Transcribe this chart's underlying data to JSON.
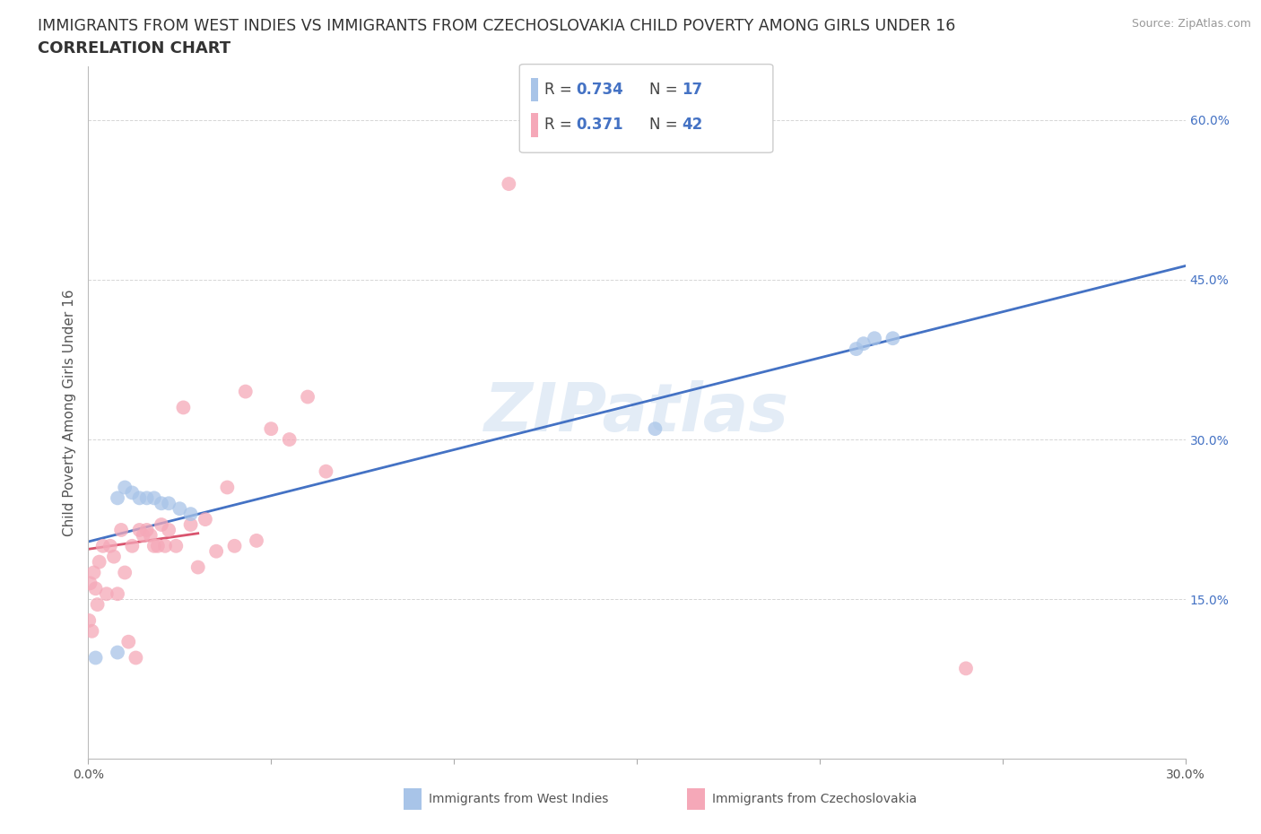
{
  "title_line1": "IMMIGRANTS FROM WEST INDIES VS IMMIGRANTS FROM CZECHOSLOVAKIA CHILD POVERTY AMONG GIRLS UNDER 16",
  "title_line2": "CORRELATION CHART",
  "source": "Source: ZipAtlas.com",
  "ylabel": "Child Poverty Among Girls Under 16",
  "watermark": "ZIPatlas",
  "xlim": [
    0.0,
    0.3
  ],
  "ylim": [
    0.0,
    0.65
  ],
  "xticks": [
    0.0,
    0.05,
    0.1,
    0.15,
    0.2,
    0.25,
    0.3
  ],
  "xtick_labels": [
    "0.0%",
    "",
    "",
    "",
    "",
    "",
    "30.0%"
  ],
  "ytick_positions": [
    0.0,
    0.15,
    0.3,
    0.45,
    0.6
  ],
  "ytick_labels": [
    "",
    "15.0%",
    "30.0%",
    "45.0%",
    "60.0%"
  ],
  "west_indies_color": "#a8c4e8",
  "czechoslovakia_color": "#f5a8b8",
  "west_indies_line_color": "#4472c4",
  "czechoslovakia_line_color": "#d9546e",
  "legend_R1": "0.734",
  "legend_N1": "17",
  "legend_R2": "0.371",
  "legend_N2": "42",
  "west_indies_x": [
    0.002,
    0.008,
    0.01,
    0.012,
    0.014,
    0.016,
    0.018,
    0.02,
    0.022,
    0.025,
    0.028,
    0.155,
    0.21,
    0.212,
    0.215,
    0.22,
    0.008
  ],
  "west_indies_y": [
    0.095,
    0.245,
    0.255,
    0.25,
    0.245,
    0.245,
    0.245,
    0.24,
    0.24,
    0.235,
    0.23,
    0.31,
    0.385,
    0.39,
    0.395,
    0.395,
    0.1
  ],
  "czechoslovakia_x": [
    0.0002,
    0.0005,
    0.001,
    0.0015,
    0.002,
    0.0025,
    0.003,
    0.004,
    0.005,
    0.006,
    0.007,
    0.008,
    0.009,
    0.01,
    0.011,
    0.012,
    0.013,
    0.014,
    0.015,
    0.016,
    0.017,
    0.018,
    0.019,
    0.02,
    0.021,
    0.022,
    0.024,
    0.026,
    0.028,
    0.03,
    0.032,
    0.035,
    0.038,
    0.04,
    0.043,
    0.046,
    0.05,
    0.055,
    0.06,
    0.065,
    0.115,
    0.24
  ],
  "czechoslovakia_y": [
    0.13,
    0.165,
    0.12,
    0.175,
    0.16,
    0.145,
    0.185,
    0.2,
    0.155,
    0.2,
    0.19,
    0.155,
    0.215,
    0.175,
    0.11,
    0.2,
    0.095,
    0.215,
    0.21,
    0.215,
    0.21,
    0.2,
    0.2,
    0.22,
    0.2,
    0.215,
    0.2,
    0.33,
    0.22,
    0.18,
    0.225,
    0.195,
    0.255,
    0.2,
    0.345,
    0.205,
    0.31,
    0.3,
    0.34,
    0.27,
    0.54,
    0.085
  ],
  "title_color": "#333333",
  "title_fontsize": 12.5,
  "subtitle_fontsize": 13,
  "axis_label_fontsize": 11,
  "tick_fontsize": 10,
  "marker_size": 130,
  "background_color": "#ffffff",
  "grid_color": "#cccccc"
}
